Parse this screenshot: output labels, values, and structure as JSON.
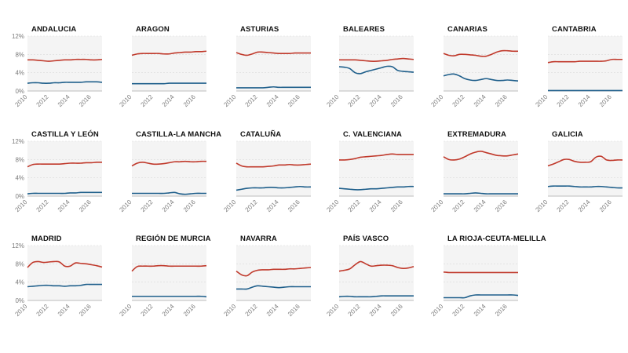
{
  "colors": {
    "series_a": "#c0392b",
    "series_b": "#1f5f8b",
    "plot_bg": "#f4f4f4",
    "grid": "#d9d9d9",
    "text": "#111111",
    "tick_text": "#7a7a7a"
  },
  "chart_data": {
    "type": "line",
    "layout": "small-multiples",
    "x_ticks": [
      2010,
      2012,
      2014,
      2016
    ],
    "x_tick_labels": [
      "2010",
      "2012",
      "2014",
      "2016"
    ],
    "xlim": [
      2010,
      2017
    ],
    "y_ticks": [
      0,
      4,
      8,
      12
    ],
    "y_tick_labels": [
      "0%",
      "4%",
      "8%",
      "12%"
    ],
    "ylim": [
      0,
      12
    ],
    "x": [
      2010,
      2010.5,
      2011,
      2011.5,
      2012,
      2012.5,
      2013,
      2013.5,
      2014,
      2014.5,
      2015,
      2015.5,
      2016,
      2016.5,
      2017
    ],
    "panels": [
      {
        "title": "ANDALUCIA",
        "series": [
          {
            "values": [
              6.8,
              6.8,
              6.7,
              6.6,
              6.5,
              6.6,
              6.7,
              6.8,
              6.8,
              6.9,
              6.9,
              6.9,
              6.8,
              6.8,
              6.9
            ]
          },
          {
            "values": [
              1.7,
              1.8,
              1.8,
              1.7,
              1.7,
              1.8,
              1.8,
              1.9,
              1.9,
              1.9,
              1.9,
              2.0,
              2.0,
              2.0,
              1.9
            ]
          }
        ]
      },
      {
        "title": "ARAGON",
        "series": [
          {
            "values": [
              7.8,
              8.1,
              8.2,
              8.2,
              8.2,
              8.2,
              8.1,
              8.1,
              8.3,
              8.4,
              8.5,
              8.5,
              8.6,
              8.6,
              8.7
            ]
          },
          {
            "values": [
              1.6,
              1.6,
              1.6,
              1.6,
              1.6,
              1.6,
              1.6,
              1.7,
              1.7,
              1.7,
              1.7,
              1.7,
              1.7,
              1.7,
              1.7
            ]
          }
        ]
      },
      {
        "title": "ASTURIAS",
        "series": [
          {
            "values": [
              8.4,
              8.0,
              7.8,
              8.1,
              8.5,
              8.5,
              8.4,
              8.3,
              8.2,
              8.2,
              8.2,
              8.3,
              8.3,
              8.3,
              8.3
            ]
          },
          {
            "values": [
              0.7,
              0.7,
              0.7,
              0.7,
              0.7,
              0.7,
              0.8,
              0.9,
              0.8,
              0.8,
              0.8,
              0.8,
              0.8,
              0.8,
              0.8
            ]
          }
        ]
      },
      {
        "title": "BALEARES",
        "series": [
          {
            "values": [
              6.8,
              6.8,
              6.8,
              6.8,
              6.7,
              6.6,
              6.5,
              6.5,
              6.6,
              6.7,
              6.9,
              7.0,
              7.1,
              7.0,
              6.9
            ]
          },
          {
            "values": [
              5.3,
              5.2,
              4.9,
              4.0,
              3.8,
              4.2,
              4.5,
              4.8,
              5.1,
              5.4,
              5.3,
              4.5,
              4.3,
              4.2,
              4.1
            ]
          }
        ]
      },
      {
        "title": "CANARIAS",
        "series": [
          {
            "values": [
              8.2,
              7.8,
              7.7,
              8.0,
              8.0,
              7.9,
              7.8,
              7.6,
              7.6,
              8.0,
              8.5,
              8.8,
              8.8,
              8.7,
              8.7
            ]
          },
          {
            "values": [
              3.3,
              3.6,
              3.7,
              3.3,
              2.7,
              2.4,
              2.3,
              2.5,
              2.7,
              2.5,
              2.3,
              2.3,
              2.4,
              2.3,
              2.2
            ]
          }
        ]
      },
      {
        "title": "CANTABRIA",
        "series": [
          {
            "values": [
              6.2,
              6.4,
              6.4,
              6.4,
              6.4,
              6.4,
              6.5,
              6.5,
              6.5,
              6.5,
              6.5,
              6.6,
              6.9,
              6.9,
              6.9
            ]
          },
          {
            "values": [
              0.1,
              0.1,
              0.1,
              0.1,
              0.1,
              0.1,
              0.1,
              0.1,
              0.1,
              0.1,
              0.1,
              0.1,
              0.1,
              0.1,
              0.1
            ]
          }
        ]
      },
      {
        "title": "CASTILLA Y LEÓN",
        "series": [
          {
            "values": [
              6.4,
              6.9,
              7.0,
              7.0,
              7.0,
              7.0,
              7.0,
              7.1,
              7.2,
              7.2,
              7.2,
              7.3,
              7.3,
              7.4,
              7.4
            ]
          },
          {
            "values": [
              0.5,
              0.6,
              0.6,
              0.6,
              0.6,
              0.6,
              0.6,
              0.6,
              0.7,
              0.7,
              0.8,
              0.8,
              0.8,
              0.8,
              0.8
            ]
          }
        ]
      },
      {
        "title": "CASTILLA-LA MANCHA",
        "series": [
          {
            "values": [
              6.6,
              7.2,
              7.4,
              7.2,
              7.0,
              7.0,
              7.1,
              7.3,
              7.5,
              7.5,
              7.6,
              7.5,
              7.5,
              7.6,
              7.6
            ]
          },
          {
            "values": [
              0.6,
              0.6,
              0.6,
              0.6,
              0.6,
              0.6,
              0.6,
              0.7,
              0.8,
              0.5,
              0.4,
              0.5,
              0.6,
              0.6,
              0.6
            ]
          }
        ]
      },
      {
        "title": "CATALUÑA",
        "series": [
          {
            "values": [
              7.2,
              6.6,
              6.4,
              6.4,
              6.4,
              6.4,
              6.5,
              6.6,
              6.8,
              6.8,
              6.9,
              6.8,
              6.8,
              6.9,
              7.0
            ]
          },
          {
            "values": [
              1.3,
              1.5,
              1.7,
              1.8,
              1.8,
              1.8,
              1.9,
              1.9,
              1.8,
              1.8,
              1.9,
              2.0,
              2.1,
              2.0,
              2.0
            ]
          }
        ]
      },
      {
        "title": "C. VALENCIANA",
        "series": [
          {
            "values": [
              7.9,
              7.9,
              8.0,
              8.2,
              8.5,
              8.6,
              8.7,
              8.8,
              8.9,
              9.1,
              9.2,
              9.1,
              9.1,
              9.1,
              9.1
            ]
          },
          {
            "values": [
              1.7,
              1.6,
              1.5,
              1.4,
              1.4,
              1.5,
              1.6,
              1.6,
              1.7,
              1.8,
              1.9,
              2.0,
              2.0,
              2.1,
              2.1
            ]
          }
        ]
      },
      {
        "title": "EXTREMADURA",
        "series": [
          {
            "values": [
              8.6,
              8.0,
              7.9,
              8.1,
              8.6,
              9.2,
              9.6,
              9.8,
              9.5,
              9.2,
              8.9,
              8.8,
              8.8,
              9.0,
              9.2
            ]
          },
          {
            "values": [
              0.5,
              0.5,
              0.5,
              0.5,
              0.5,
              0.6,
              0.7,
              0.6,
              0.5,
              0.5,
              0.5,
              0.5,
              0.5,
              0.5,
              0.5
            ]
          }
        ]
      },
      {
        "title": "GALICIA",
        "series": [
          {
            "values": [
              6.6,
              7.0,
              7.5,
              8.0,
              8.0,
              7.6,
              7.4,
              7.4,
              7.5,
              8.5,
              8.7,
              7.9,
              7.8,
              7.9,
              7.9
            ]
          },
          {
            "values": [
              2.1,
              2.2,
              2.2,
              2.2,
              2.2,
              2.1,
              2.0,
              2.0,
              2.0,
              2.1,
              2.1,
              2.0,
              1.9,
              1.8,
              1.8
            ]
          }
        ]
      },
      {
        "title": "MADRID",
        "series": [
          {
            "values": [
              7.2,
              8.3,
              8.5,
              8.3,
              8.4,
              8.5,
              8.4,
              7.5,
              7.5,
              8.2,
              8.1,
              8.0,
              7.8,
              7.6,
              7.3
            ]
          },
          {
            "values": [
              3.0,
              3.1,
              3.2,
              3.3,
              3.3,
              3.2,
              3.2,
              3.1,
              3.2,
              3.2,
              3.3,
              3.5,
              3.5,
              3.5,
              3.5
            ]
          }
        ]
      },
      {
        "title": "REGIÓN DE MURCIA",
        "series": [
          {
            "values": [
              6.4,
              7.4,
              7.5,
              7.5,
              7.5,
              7.6,
              7.6,
              7.5,
              7.5,
              7.5,
              7.5,
              7.5,
              7.5,
              7.5,
              7.6
            ]
          },
          {
            "values": [
              0.9,
              0.9,
              0.9,
              0.9,
              0.9,
              0.9,
              0.9,
              0.9,
              0.9,
              0.9,
              0.9,
              0.9,
              0.9,
              0.9,
              0.8
            ]
          }
        ]
      },
      {
        "title": "NAVARRA",
        "series": [
          {
            "values": [
              6.4,
              5.6,
              5.4,
              6.2,
              6.6,
              6.7,
              6.7,
              6.8,
              6.8,
              6.8,
              6.9,
              6.9,
              7.0,
              7.1,
              7.2
            ]
          },
          {
            "values": [
              2.5,
              2.5,
              2.5,
              2.9,
              3.2,
              3.1,
              3.0,
              2.9,
              2.8,
              2.9,
              3.0,
              3.0,
              3.0,
              3.0,
              3.0
            ]
          }
        ]
      },
      {
        "title": "PAÍS VASCO",
        "series": [
          {
            "values": [
              6.4,
              6.6,
              6.9,
              7.8,
              8.5,
              8.0,
              7.5,
              7.6,
              7.7,
              7.7,
              7.6,
              7.2,
              7.0,
              7.1,
              7.4
            ]
          },
          {
            "values": [
              0.8,
              0.9,
              0.9,
              0.8,
              0.8,
              0.8,
              0.8,
              0.9,
              1.0,
              1.0,
              1.0,
              1.0,
              1.0,
              1.0,
              1.0
            ]
          }
        ]
      },
      {
        "title": "LA RIOJA-CEUTA-MELILLA",
        "series": [
          {
            "values": [
              6.2,
              6.1,
              6.1,
              6.1,
              6.1,
              6.1,
              6.1,
              6.1,
              6.1,
              6.1,
              6.1,
              6.1,
              6.1,
              6.1,
              6.1
            ]
          },
          {
            "values": [
              0.6,
              0.6,
              0.6,
              0.6,
              0.6,
              1.0,
              1.2,
              1.2,
              1.2,
              1.2,
              1.2,
              1.2,
              1.2,
              1.2,
              1.1
            ]
          }
        ]
      }
    ]
  }
}
